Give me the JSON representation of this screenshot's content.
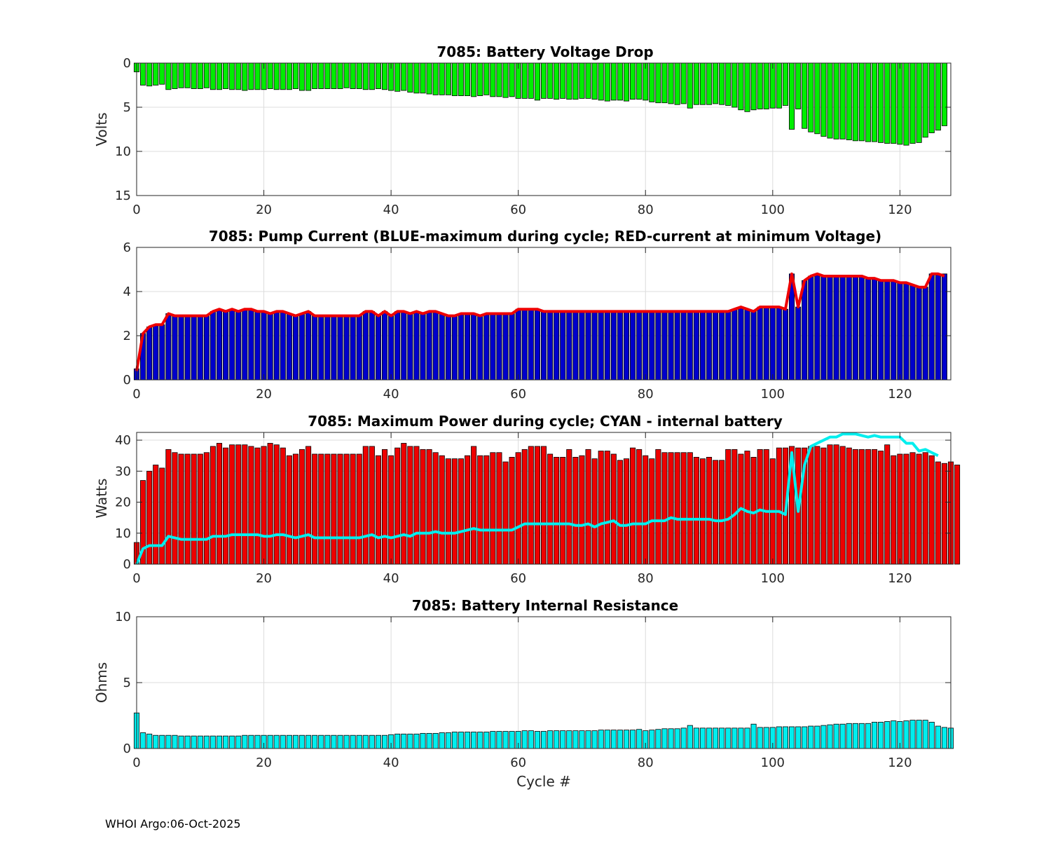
{
  "figure": {
    "footer": "WHOI Argo:06-Oct-2025",
    "xlabel": "Cycle #"
  },
  "chart_data": [
    {
      "type": "bar",
      "title": "7085: Battery Voltage Drop",
      "ylabel": "Volts",
      "xlabel": "",
      "xlim": [
        0,
        128
      ],
      "ylim": [
        0,
        15
      ],
      "y_reversed": true,
      "x_ticks": [
        0,
        20,
        40,
        60,
        80,
        100,
        120
      ],
      "y_ticks": [
        0,
        5,
        10,
        15
      ],
      "grid": true,
      "bar_color": "#00ee00",
      "x": [
        0,
        1,
        2,
        3,
        4,
        5,
        6,
        7,
        8,
        9,
        10,
        11,
        12,
        13,
        14,
        15,
        16,
        17,
        18,
        19,
        20,
        21,
        22,
        23,
        24,
        25,
        26,
        27,
        28,
        29,
        30,
        31,
        32,
        33,
        34,
        35,
        36,
        37,
        38,
        39,
        40,
        41,
        42,
        43,
        44,
        45,
        46,
        47,
        48,
        49,
        50,
        51,
        52,
        53,
        54,
        55,
        56,
        57,
        58,
        59,
        60,
        61,
        62,
        63,
        64,
        65,
        66,
        67,
        68,
        69,
        70,
        71,
        72,
        73,
        74,
        75,
        76,
        77,
        78,
        79,
        80,
        81,
        82,
        83,
        84,
        85,
        86,
        87,
        88,
        89,
        90,
        91,
        92,
        93,
        94,
        95,
        96,
        97,
        98,
        99,
        100,
        101,
        102,
        103,
        104,
        105,
        106,
        107,
        108,
        109,
        110,
        111,
        112,
        113,
        114,
        115,
        116,
        117,
        118,
        119,
        120,
        121,
        122,
        123,
        124,
        125,
        126,
        127
      ],
      "values": [
        1.0,
        2.5,
        2.6,
        2.5,
        2.4,
        3.0,
        2.9,
        2.8,
        2.8,
        2.9,
        2.9,
        2.8,
        3.0,
        3.0,
        2.9,
        3.0,
        3.0,
        3.1,
        3.0,
        3.0,
        3.0,
        2.9,
        3.0,
        3.0,
        3.0,
        2.9,
        3.1,
        3.1,
        2.9,
        2.9,
        2.9,
        2.9,
        2.9,
        2.8,
        2.9,
        2.9,
        3.0,
        3.0,
        2.9,
        3.0,
        3.1,
        3.2,
        3.1,
        3.3,
        3.4,
        3.4,
        3.5,
        3.6,
        3.6,
        3.6,
        3.7,
        3.7,
        3.7,
        3.8,
        3.7,
        3.6,
        3.8,
        3.8,
        3.9,
        3.8,
        4.0,
        4.0,
        4.0,
        4.2,
        4.0,
        4.0,
        4.1,
        4.0,
        4.1,
        4.1,
        4.0,
        4.0,
        4.1,
        4.2,
        4.3,
        4.2,
        4.2,
        4.3,
        4.1,
        4.1,
        4.2,
        4.4,
        4.5,
        4.5,
        4.6,
        4.7,
        4.6,
        5.1,
        4.7,
        4.7,
        4.7,
        4.6,
        4.7,
        4.8,
        5.0,
        5.3,
        5.5,
        5.3,
        5.2,
        5.2,
        5.1,
        5.1,
        4.8,
        7.5,
        5.2,
        7.4,
        7.8,
        8.0,
        8.3,
        8.5,
        8.6,
        8.6,
        8.7,
        8.8,
        8.8,
        8.9,
        8.9,
        9.0,
        9.1,
        9.1,
        9.2,
        9.3,
        9.1,
        9.0,
        8.4,
        7.9,
        7.6,
        7.1
      ]
    },
    {
      "type": "bar",
      "title": "7085: Pump Current (BLUE-maximum during cycle; RED-current at minimum Voltage)",
      "ylabel": "",
      "xlabel": "",
      "xlim": [
        0,
        128
      ],
      "ylim": [
        0,
        6
      ],
      "x_ticks": [
        0,
        20,
        40,
        60,
        80,
        100,
        120
      ],
      "y_ticks": [
        0,
        2,
        4,
        6
      ],
      "grid": true,
      "series": [
        {
          "type": "bar",
          "color": "#0000cc",
          "values": [
            0.5,
            2.1,
            2.4,
            2.5,
            2.5,
            3.0,
            2.9,
            2.9,
            2.9,
            2.9,
            2.9,
            2.9,
            3.1,
            3.2,
            3.1,
            3.2,
            3.1,
            3.2,
            3.2,
            3.1,
            3.1,
            3.0,
            3.1,
            3.1,
            3.0,
            2.9,
            3.0,
            3.1,
            2.9,
            2.9,
            2.9,
            2.9,
            2.9,
            2.9,
            2.9,
            2.9,
            3.1,
            3.1,
            2.9,
            3.1,
            2.9,
            3.1,
            3.1,
            3.0,
            3.1,
            3.0,
            3.1,
            3.1,
            3.0,
            2.9,
            2.9,
            3.0,
            3.0,
            3.0,
            2.9,
            3.0,
            3.0,
            3.0,
            3.0,
            3.0,
            3.2,
            3.2,
            3.2,
            3.2,
            3.1,
            3.1,
            3.1,
            3.1,
            3.1,
            3.1,
            3.1,
            3.1,
            3.1,
            3.1,
            3.1,
            3.1,
            3.1,
            3.1,
            3.1,
            3.1,
            3.1,
            3.1,
            3.1,
            3.1,
            3.1,
            3.1,
            3.1,
            3.1,
            3.1,
            3.1,
            3.1,
            3.1,
            3.1,
            3.1,
            3.2,
            3.3,
            3.2,
            3.1,
            3.3,
            3.3,
            3.3,
            3.3,
            3.2,
            4.8,
            3.3,
            4.5,
            4.7,
            4.8,
            4.7,
            4.7,
            4.7,
            4.7,
            4.7,
            4.7,
            4.7,
            4.6,
            4.6,
            4.5,
            4.5,
            4.5,
            4.4,
            4.4,
            4.3,
            4.2,
            4.2,
            4.8,
            4.8,
            4.8
          ]
        },
        {
          "type": "line",
          "color": "#ee0000",
          "values": [
            0.4,
            2.1,
            2.4,
            2.5,
            2.5,
            3.0,
            2.9,
            2.9,
            2.9,
            2.9,
            2.9,
            2.9,
            3.1,
            3.2,
            3.1,
            3.2,
            3.1,
            3.2,
            3.2,
            3.1,
            3.1,
            3.0,
            3.1,
            3.1,
            3.0,
            2.9,
            3.0,
            3.1,
            2.9,
            2.9,
            2.9,
            2.9,
            2.9,
            2.9,
            2.9,
            2.9,
            3.1,
            3.1,
            2.9,
            3.1,
            2.9,
            3.1,
            3.1,
            3.0,
            3.1,
            3.0,
            3.1,
            3.1,
            3.0,
            2.9,
            2.9,
            3.0,
            3.0,
            3.0,
            2.9,
            3.0,
            3.0,
            3.0,
            3.0,
            3.0,
            3.2,
            3.2,
            3.2,
            3.2,
            3.1,
            3.1,
            3.1,
            3.1,
            3.1,
            3.1,
            3.1,
            3.1,
            3.1,
            3.1,
            3.1,
            3.1,
            3.1,
            3.1,
            3.1,
            3.1,
            3.1,
            3.1,
            3.1,
            3.1,
            3.1,
            3.1,
            3.1,
            3.1,
            3.1,
            3.1,
            3.1,
            3.1,
            3.1,
            3.1,
            3.2,
            3.3,
            3.2,
            3.1,
            3.3,
            3.3,
            3.3,
            3.3,
            3.2,
            4.8,
            3.3,
            4.5,
            4.7,
            4.8,
            4.7,
            4.7,
            4.7,
            4.7,
            4.7,
            4.7,
            4.7,
            4.6,
            4.6,
            4.5,
            4.5,
            4.5,
            4.4,
            4.4,
            4.3,
            4.2,
            4.2,
            4.8,
            4.8,
            4.7
          ]
        }
      ]
    },
    {
      "type": "bar",
      "title": "7085: Maximum Power during cycle; CYAN - internal battery",
      "ylabel": "Watts",
      "xlabel": "",
      "xlim": [
        0,
        128
      ],
      "ylim": [
        0,
        42.5
      ],
      "x_ticks": [
        0,
        20,
        40,
        60,
        80,
        100,
        120
      ],
      "y_ticks": [
        0,
        10,
        20,
        30,
        40
      ],
      "grid": true,
      "series": [
        {
          "type": "bar",
          "color": "#ee0000",
          "values": [
            7,
            27,
            30,
            32,
            31,
            37,
            36,
            35.5,
            35.5,
            35.5,
            35.5,
            36,
            38,
            39,
            37.5,
            38.5,
            38.5,
            38.5,
            38,
            37.5,
            38,
            39,
            38.5,
            37.5,
            35,
            35.5,
            37,
            38,
            35.5,
            35.5,
            35.5,
            35.5,
            35.5,
            35.5,
            35.5,
            35.5,
            38,
            38,
            35,
            37,
            35,
            37.5,
            39,
            38,
            38,
            37,
            37,
            36,
            35,
            34,
            34,
            34,
            35,
            38,
            35,
            35,
            36,
            36,
            33,
            34.5,
            36,
            37,
            38,
            38,
            38,
            35.5,
            34.5,
            34.5,
            37,
            34.5,
            35,
            37,
            34,
            36.5,
            36.5,
            35.5,
            33.5,
            34,
            37.5,
            37,
            35,
            34,
            37,
            36,
            36,
            36,
            36,
            36,
            34.5,
            34,
            34.5,
            33.5,
            33.5,
            37,
            37,
            35.5,
            36.5,
            34.5,
            37,
            37,
            34,
            37.5,
            37.5,
            38,
            37.5,
            37.5,
            38,
            38,
            37.5,
            38.5,
            38.5,
            38,
            37.5,
            37,
            37,
            37,
            37,
            36.5,
            38.5,
            35,
            35.5,
            35.5,
            36,
            35.5,
            36,
            35,
            33,
            32.5,
            33,
            32
          ]
        },
        {
          "type": "line",
          "color": "#00eeee",
          "values": [
            0,
            5,
            6,
            6,
            6,
            9,
            8.5,
            8,
            8,
            8,
            8,
            8,
            9,
            9,
            9,
            9.5,
            9.5,
            9.5,
            9.5,
            9.5,
            9,
            9,
            9.5,
            9.5,
            9,
            8.5,
            9,
            9.5,
            8.5,
            8.5,
            8.5,
            8.5,
            8.5,
            8.5,
            8.5,
            8.5,
            9,
            9.5,
            8.5,
            9,
            8.5,
            9,
            9.5,
            9,
            10,
            10,
            10,
            10.5,
            10,
            10,
            10,
            10.5,
            11,
            11.5,
            11,
            11,
            11,
            11,
            11,
            11,
            12,
            13,
            13,
            13,
            13,
            13,
            13,
            13,
            13,
            12.5,
            12.5,
            13,
            12,
            13,
            13.5,
            14,
            12.5,
            12.5,
            13,
            13,
            13,
            14,
            14,
            14,
            15,
            14.5,
            14.5,
            14.5,
            14.5,
            14.5,
            14.5,
            14,
            14,
            14.5,
            16,
            18,
            17,
            16.5,
            17.5,
            17,
            17,
            17,
            16,
            36,
            17,
            32,
            38,
            39,
            40,
            41,
            41,
            42,
            42,
            42,
            41.5,
            41,
            41.5,
            41,
            41,
            41,
            41,
            39,
            39,
            36.5,
            37,
            36,
            35
          ]
        }
      ]
    },
    {
      "type": "bar",
      "title": "7085: Battery Internal Resistance",
      "ylabel": "Ohms",
      "xlabel": "Cycle #",
      "xlim": [
        0,
        128
      ],
      "ylim": [
        0,
        10
      ],
      "x_ticks": [
        0,
        20,
        40,
        60,
        80,
        100,
        120
      ],
      "y_ticks": [
        0,
        5,
        10
      ],
      "grid": true,
      "bar_color": "#00eeee",
      "values": [
        2.7,
        1.2,
        1.1,
        1.0,
        1.0,
        1.0,
        1.0,
        0.95,
        0.95,
        0.95,
        0.95,
        0.95,
        0.95,
        0.95,
        0.95,
        0.95,
        0.95,
        1.0,
        1.0,
        1.0,
        1.0,
        1.0,
        1.0,
        1.0,
        1.0,
        1.0,
        1.0,
        1.0,
        1.0,
        1.0,
        1.0,
        1.0,
        1.0,
        1.0,
        1.0,
        1.0,
        1.0,
        1.0,
        1.0,
        1.0,
        1.05,
        1.1,
        1.1,
        1.1,
        1.1,
        1.15,
        1.15,
        1.15,
        1.2,
        1.2,
        1.25,
        1.25,
        1.25,
        1.25,
        1.25,
        1.25,
        1.3,
        1.3,
        1.3,
        1.3,
        1.3,
        1.35,
        1.35,
        1.3,
        1.3,
        1.35,
        1.35,
        1.35,
        1.35,
        1.35,
        1.35,
        1.35,
        1.35,
        1.4,
        1.4,
        1.4,
        1.4,
        1.4,
        1.4,
        1.45,
        1.35,
        1.4,
        1.45,
        1.5,
        1.5,
        1.5,
        1.55,
        1.75,
        1.55,
        1.55,
        1.55,
        1.55,
        1.55,
        1.55,
        1.55,
        1.55,
        1.55,
        1.85,
        1.6,
        1.6,
        1.6,
        1.65,
        1.65,
        1.65,
        1.65,
        1.65,
        1.7,
        1.7,
        1.75,
        1.8,
        1.85,
        1.85,
        1.9,
        1.9,
        1.9,
        1.9,
        2.0,
        2.0,
        2.05,
        2.1,
        2.05,
        2.1,
        2.15,
        2.15,
        2.15,
        2.0,
        1.7,
        1.6,
        1.55
      ]
    }
  ]
}
